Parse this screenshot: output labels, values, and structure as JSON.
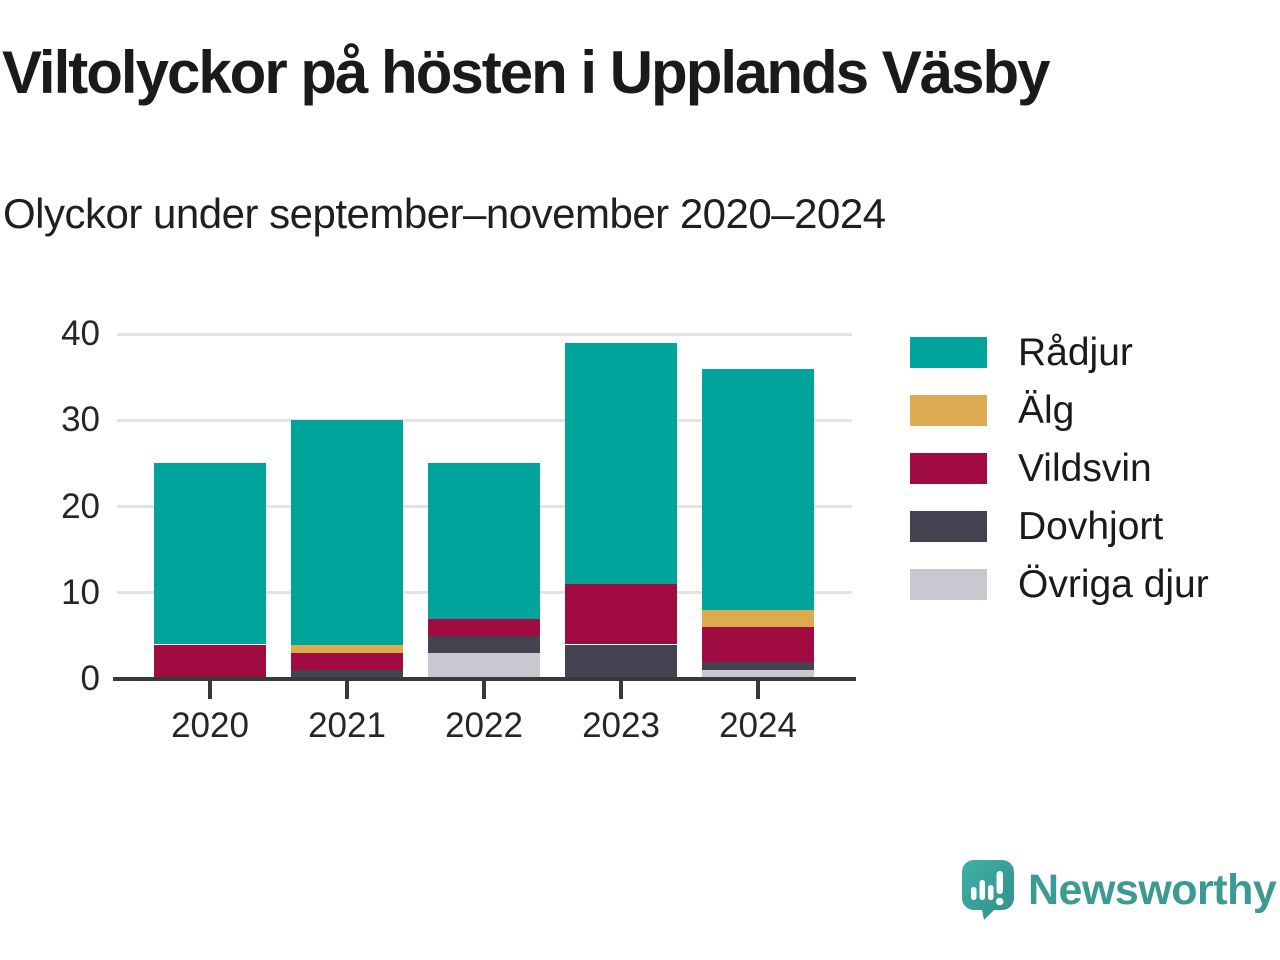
{
  "title": "Viltolyckor på hösten i Upplands Väsby",
  "subtitle": "Olyckor under september–november 2020–2024",
  "colors": {
    "radjur": "#00a49b",
    "alg": "#dcab51",
    "vildsvin": "#a00b42",
    "dovhjort": "#454150",
    "ovriga": "#c9c8d0",
    "axis": "#383838",
    "grid": "#e3e3e3",
    "text": "#1a1a1a",
    "brand": "#3b9b93"
  },
  "chart_data": {
    "type": "bar",
    "stacked": true,
    "title": "Viltolyckor på hösten i Upplands Väsby",
    "subtitle": "Olyckor under september–november 2020–2024",
    "categories": [
      "2020",
      "2021",
      "2022",
      "2023",
      "2024"
    ],
    "series": [
      {
        "name": "Rådjur",
        "color_key": "radjur",
        "values": [
          21,
          26,
          18,
          28,
          28
        ]
      },
      {
        "name": "Älg",
        "color_key": "alg",
        "values": [
          0,
          1,
          0,
          0,
          2
        ]
      },
      {
        "name": "Vildsvin",
        "color_key": "vildsvin",
        "values": [
          4,
          2,
          2,
          7,
          4
        ]
      },
      {
        "name": "Dovhjort",
        "color_key": "dovhjort",
        "values": [
          0,
          1,
          2,
          4,
          1
        ]
      },
      {
        "name": "Övriga djur",
        "color_key": "ovriga",
        "values": [
          0,
          0,
          3,
          0,
          1
        ]
      }
    ],
    "stack_order_bottom_to_top": [
      "Övriga djur",
      "Dovhjort",
      "Vildsvin",
      "Älg",
      "Rådjur"
    ],
    "totals": [
      25,
      30,
      25,
      39,
      36
    ],
    "xlabel": "",
    "ylabel": "",
    "ylim": [
      0,
      40
    ],
    "yticks": [
      0,
      10,
      20,
      30,
      40
    ],
    "grid": "horizontal",
    "legend_position": "right"
  },
  "footer": {
    "brand": "Newsworthy"
  }
}
